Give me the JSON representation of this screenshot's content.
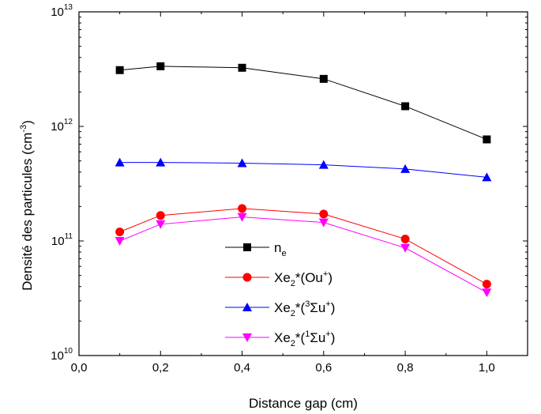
{
  "chart_data": {
    "type": "line",
    "title": "",
    "xlabel": "Distance gap (cm)",
    "ylabel": {
      "main": "Densité des particules (cm",
      "sup": "-3",
      "close": ")"
    },
    "xlim": [
      0.0,
      1.1
    ],
    "ylim": [
      10000000000.0,
      10000000000000.0
    ],
    "yscale": "log",
    "grid": false,
    "legend_position": "lower-center",
    "x": [
      0.1,
      0.2,
      0.4,
      0.6,
      0.8,
      1.0
    ],
    "x_ticks": [
      {
        "value": 0.0,
        "label": "0,0"
      },
      {
        "value": 0.2,
        "label": "0,2"
      },
      {
        "value": 0.4,
        "label": "0,4"
      },
      {
        "value": 0.6,
        "label": "0,6"
      },
      {
        "value": 0.8,
        "label": "0,8"
      },
      {
        "value": 1.0,
        "label": "1,0"
      }
    ],
    "y_ticks": [
      {
        "value": 10000000000.0,
        "base": "10",
        "exp": "10"
      },
      {
        "value": 100000000000.0,
        "base": "10",
        "exp": "11"
      },
      {
        "value": 1000000000000.0,
        "base": "10",
        "exp": "12"
      },
      {
        "value": 10000000000000.0,
        "base": "10",
        "exp": "13"
      }
    ],
    "series": [
      {
        "name": "n_e",
        "label_parts": [
          [
            "n",
            "n"
          ],
          [
            "e",
            "sub"
          ]
        ],
        "marker": "square",
        "color": "#000000",
        "values": [
          3100000000000.0,
          3350000000000.0,
          3250000000000.0,
          2600000000000.0,
          1500000000000.0,
          770000000000.0
        ]
      },
      {
        "name": "Xe2*(Ou+)",
        "label_parts": [
          [
            "Xe",
            "n"
          ],
          [
            "2",
            "sub"
          ],
          [
            "*(Ou",
            "n"
          ],
          [
            "+",
            "sup"
          ],
          [
            ")",
            "n"
          ]
        ],
        "marker": "circle",
        "color": "#ff0000",
        "values": [
          120000000000.0,
          167000000000.0,
          192000000000.0,
          172000000000.0,
          104000000000.0,
          42000000000.0
        ]
      },
      {
        "name": "Xe2*(3Σu+)",
        "label_parts": [
          [
            "Xe",
            "n"
          ],
          [
            "2",
            "sub"
          ],
          [
            "*(",
            "n"
          ],
          [
            "3",
            "sup"
          ],
          [
            "Σu",
            "n"
          ],
          [
            "+",
            "sup"
          ],
          [
            ")",
            "n"
          ]
        ],
        "marker": "triangle-up",
        "color": "#0000ff",
        "values": [
          485000000000.0,
          485000000000.0,
          478000000000.0,
          462000000000.0,
          425000000000.0,
          360000000000.0
        ]
      },
      {
        "name": "Xe2*(1Σu+)",
        "label_parts": [
          [
            "Xe",
            "n"
          ],
          [
            "2",
            "sub"
          ],
          [
            "*(",
            "n"
          ],
          [
            "1",
            "sup"
          ],
          [
            "Σu",
            "n"
          ],
          [
            "+",
            "sup"
          ],
          [
            ")",
            "n"
          ]
        ],
        "marker": "triangle-down",
        "color": "#ff00ff",
        "values": [
          100000000000.0,
          140000000000.0,
          162000000000.0,
          145000000000.0,
          87000000000.0,
          35500000000.0
        ]
      }
    ]
  }
}
